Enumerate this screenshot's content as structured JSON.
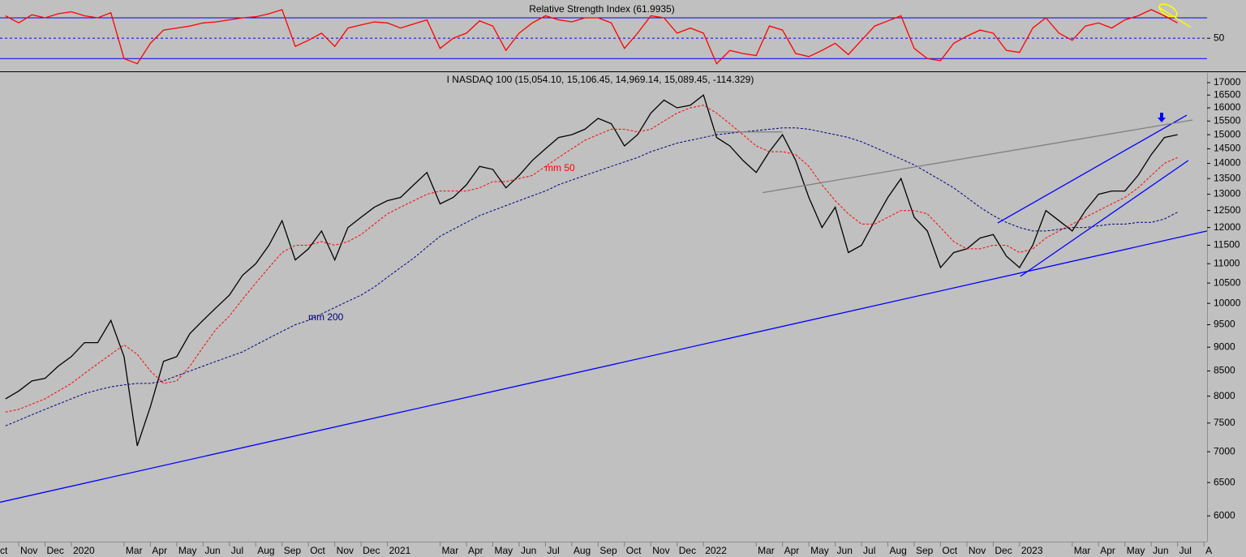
{
  "chart_data": [
    {
      "type": "line",
      "title": "Relative Strength Index (61.9935)",
      "x": [
        0.5,
        1,
        1.5,
        2,
        2.5,
        3,
        3.5,
        4,
        4.5,
        5,
        5.5,
        6,
        6.5,
        7,
        7.5,
        8,
        8.5,
        9,
        9.5,
        10,
        10.5,
        11,
        11.5,
        12,
        12.5,
        13,
        13.5,
        14,
        14.5,
        15,
        15.5,
        16,
        16.5,
        17,
        17.5,
        18,
        18.5,
        19,
        19.5,
        20,
        20.5,
        21,
        21.5,
        22,
        22.5,
        23,
        23.5,
        24,
        24.5,
        25,
        25.5,
        26,
        26.5,
        27,
        27.5,
        28,
        28.5,
        29,
        29.5,
        30,
        30.5,
        31,
        31.5,
        32,
        32.5,
        33,
        33.5,
        34,
        34.5,
        35,
        35.5,
        36,
        36.5,
        37,
        37.5,
        38,
        38.5,
        39,
        39.5,
        40,
        40.5,
        41,
        41.5,
        42,
        42.5,
        43,
        43.5,
        44,
        44.5,
        45
      ],
      "values": [
        72,
        65,
        73,
        70,
        74,
        76,
        72,
        70,
        75,
        30,
        25,
        45,
        58,
        60,
        62,
        65,
        66,
        68,
        70,
        71,
        74,
        78,
        42,
        48,
        55,
        42,
        60,
        63,
        66,
        65,
        60,
        64,
        68,
        40,
        50,
        55,
        67,
        62,
        38,
        55,
        65,
        72,
        68,
        66,
        70,
        70,
        65,
        40,
        55,
        72,
        70,
        55,
        60,
        55,
        25,
        38,
        35,
        33,
        62,
        58,
        35,
        32,
        38,
        45,
        34,
        48,
        62,
        67,
        72,
        40,
        30,
        28,
        45,
        52,
        58,
        55,
        38,
        36,
        60,
        70,
        55,
        48,
        62,
        65,
        60,
        68,
        72,
        78,
        72,
        65
      ],
      "color": "#ff0000",
      "xlim": [
        0.29,
        46.12
      ],
      "ylim": [
        17.5,
        87.5
      ],
      "yticks": [
        50
      ],
      "hlines": [
        {
          "value": 70,
          "color": "#0000ff"
        },
        {
          "value": 50,
          "color": "#0000ff",
          "dash": true
        },
        {
          "value": 30,
          "color": "#0000ff"
        }
      ],
      "trendlines": [
        {
          "color": "#ffff00",
          "x": [
            44.27,
            45.5
          ],
          "y": [
            80.8,
            60.8
          ]
        }
      ]
    },
    {
      "type": "line",
      "title": "I NASDAQ 100 (15,054.10, 15,106.45, 14,969.14, 15,089.45, -114.329)",
      "x": [
        0.5,
        1,
        1.5,
        2,
        2.5,
        3,
        3.5,
        4,
        4.5,
        5,
        5.5,
        6,
        6.5,
        7,
        7.5,
        8,
        8.5,
        9,
        9.5,
        10,
        10.5,
        11,
        11.5,
        12,
        12.5,
        13,
        13.5,
        14,
        14.5,
        15,
        15.5,
        16,
        16.5,
        17,
        17.5,
        18,
        18.5,
        19,
        19.5,
        20,
        20.5,
        21,
        21.5,
        22,
        22.5,
        23,
        23.5,
        24,
        24.5,
        25,
        25.5,
        26,
        26.5,
        27,
        27.5,
        28,
        28.5,
        29,
        29.5,
        30,
        30.5,
        31,
        31.5,
        32,
        32.5,
        33,
        33.5,
        34,
        34.5,
        35,
        35.5,
        36,
        36.5,
        37,
        37.5,
        38,
        38.5,
        39,
        39.5,
        40,
        40.5,
        41,
        41.5,
        42,
        42.5,
        43,
        43.5,
        44,
        44.5,
        45
      ],
      "series": [
        {
          "color": "#000000",
          "values": [
            7950,
            8100,
            8300,
            8350,
            8600,
            8800,
            9100,
            9100,
            9600,
            8800,
            7100,
            7800,
            8700,
            8800,
            9300,
            9600,
            9900,
            10200,
            10700,
            11000,
            11500,
            12200,
            11100,
            11400,
            11900,
            11100,
            12000,
            12300,
            12600,
            12800,
            12900,
            13300,
            13700,
            12700,
            12900,
            13300,
            13900,
            13800,
            13200,
            13600,
            14100,
            14500,
            14900,
            15000,
            15200,
            15600,
            15400,
            14600,
            15000,
            15800,
            16300,
            16000,
            16100,
            16500,
            14900,
            14600,
            14100,
            13700,
            14400,
            15000,
            14100,
            12900,
            12000,
            12600,
            11300,
            11500,
            12200,
            12900,
            13500,
            12300,
            11900,
            10900,
            11300,
            11400,
            11700,
            11800,
            11200,
            10900,
            11500,
            12500,
            12200,
            11900,
            12500,
            13000,
            13100,
            13100,
            13600,
            14300,
            14900,
            15000
          ]
        },
        {
          "name": "mm 50",
          "color": "#ff0000",
          "dash": true,
          "values": [
            7700,
            7750,
            7850,
            7950,
            8100,
            8250,
            8450,
            8650,
            8850,
            9050,
            8850,
            8500,
            8250,
            8300,
            8600,
            9000,
            9400,
            9700,
            10100,
            10500,
            10900,
            11300,
            11500,
            11500,
            11600,
            11500,
            11600,
            11800,
            12100,
            12400,
            12600,
            12800,
            13000,
            13100,
            13100,
            13100,
            13200,
            13400,
            13400,
            13500,
            13600,
            13900,
            14200,
            14500,
            14800,
            15000,
            15200,
            15200,
            15100,
            15200,
            15500,
            15800,
            16000,
            16100,
            15800,
            15400,
            15000,
            14600,
            14400,
            14400,
            14300,
            13900,
            13300,
            12800,
            12400,
            12100,
            12100,
            12300,
            12500,
            12500,
            12400,
            12000,
            11600,
            11400,
            11400,
            11500,
            11500,
            11300,
            11400,
            11700,
            11900,
            12100,
            12300,
            12500,
            12700,
            12900,
            13200,
            13600,
            14000,
            14200
          ]
        },
        {
          "name": "mm 200",
          "color": "#000080",
          "dash": true,
          "values": [
            7450,
            7550,
            7650,
            7750,
            7850,
            7950,
            8050,
            8120,
            8180,
            8220,
            8250,
            8250,
            8300,
            8400,
            8500,
            8600,
            8700,
            8800,
            8900,
            9050,
            9200,
            9350,
            9500,
            9600,
            9750,
            9900,
            10050,
            10200,
            10400,
            10650,
            10900,
            11150,
            11450,
            11750,
            11950,
            12150,
            12350,
            12500,
            12650,
            12800,
            12950,
            13100,
            13300,
            13450,
            13600,
            13750,
            13900,
            14050,
            14200,
            14400,
            14550,
            14700,
            14800,
            14900,
            15000,
            15050,
            15100,
            15150,
            15200,
            15250,
            15250,
            15200,
            15100,
            15000,
            14900,
            14750,
            14550,
            14350,
            14150,
            13950,
            13700,
            13450,
            13200,
            12900,
            12600,
            12350,
            12150,
            12000,
            11900,
            11900,
            11950,
            12000,
            12000,
            12050,
            12100,
            12100,
            12150,
            12150,
            12250,
            12450
          ]
        }
      ],
      "xlim": [
        0.29,
        46.12
      ],
      "ylim": [
        5640,
        17400
      ],
      "log": true,
      "yticks": [
        6000,
        6500,
        7000,
        7500,
        8000,
        8500,
        9000,
        9500,
        10000,
        10500,
        11000,
        11500,
        12000,
        12500,
        13000,
        13500,
        14000,
        14500,
        15000,
        15500,
        16000,
        16500,
        17000
      ],
      "xticks": [
        {
          "value": 0,
          "label": "ct"
        },
        {
          "value": 1,
          "label": "Nov"
        },
        {
          "value": 2,
          "label": "Dec"
        },
        {
          "value": 3,
          "label": "2020"
        },
        {
          "value": 5,
          "label": "Mar"
        },
        {
          "value": 6,
          "label": "Apr"
        },
        {
          "value": 7,
          "label": "May"
        },
        {
          "value": 8,
          "label": "Jun"
        },
        {
          "value": 9,
          "label": "Jul"
        },
        {
          "value": 10,
          "label": "Aug"
        },
        {
          "value": 11,
          "label": "Sep"
        },
        {
          "value": 12,
          "label": "Oct"
        },
        {
          "value": 13,
          "label": "Nov"
        },
        {
          "value": 14,
          "label": "Dec"
        },
        {
          "value": 15,
          "label": "2021"
        },
        {
          "value": 17,
          "label": "Mar"
        },
        {
          "value": 18,
          "label": "Apr"
        },
        {
          "value": 19,
          "label": "May"
        },
        {
          "value": 20,
          "label": "Jun"
        },
        {
          "value": 21,
          "label": "Jul"
        },
        {
          "value": 22,
          "label": "Aug"
        },
        {
          "value": 23,
          "label": "Sep"
        },
        {
          "value": 24,
          "label": "Oct"
        },
        {
          "value": 25,
          "label": "Nov"
        },
        {
          "value": 26,
          "label": "Dec"
        },
        {
          "value": 27,
          "label": "2022"
        },
        {
          "value": 29,
          "label": "Mar"
        },
        {
          "value": 30,
          "label": "Apr"
        },
        {
          "value": 31,
          "label": "May"
        },
        {
          "value": 32,
          "label": "Jun"
        },
        {
          "value": 33,
          "label": "Jul"
        },
        {
          "value": 34,
          "label": "Aug"
        },
        {
          "value": 35,
          "label": "Sep"
        },
        {
          "value": 36,
          "label": "Oct"
        },
        {
          "value": 37,
          "label": "Nov"
        },
        {
          "value": 38,
          "label": "Dec"
        },
        {
          "value": 39,
          "label": "2023"
        },
        {
          "value": 41,
          "label": "Mar"
        },
        {
          "value": 42,
          "label": "Apr"
        },
        {
          "value": 43,
          "label": "May"
        },
        {
          "value": 44,
          "label": "Jun"
        },
        {
          "value": 45,
          "label": "Jul"
        },
        {
          "value": 46,
          "label": "A"
        }
      ],
      "trendlines": [
        {
          "color": "#0000ff",
          "x": [
            0.29,
            46.12
          ],
          "y": [
            6200,
            11900
          ]
        },
        {
          "color": "#0000ff",
          "x": [
            38.17,
            45.35
          ],
          "y": [
            12130,
            15720
          ]
        },
        {
          "color": "#0000ff",
          "x": [
            39.03,
            45.41
          ],
          "y": [
            10670,
            14100
          ]
        },
        {
          "color": "#808080",
          "x": [
            29.24,
            45.57
          ],
          "y": [
            13050,
            15540
          ]
        },
        {
          "color": "#808080",
          "x": [
            27.4,
            30.0
          ],
          "y": [
            15100,
            15100
          ]
        }
      ]
    }
  ]
}
